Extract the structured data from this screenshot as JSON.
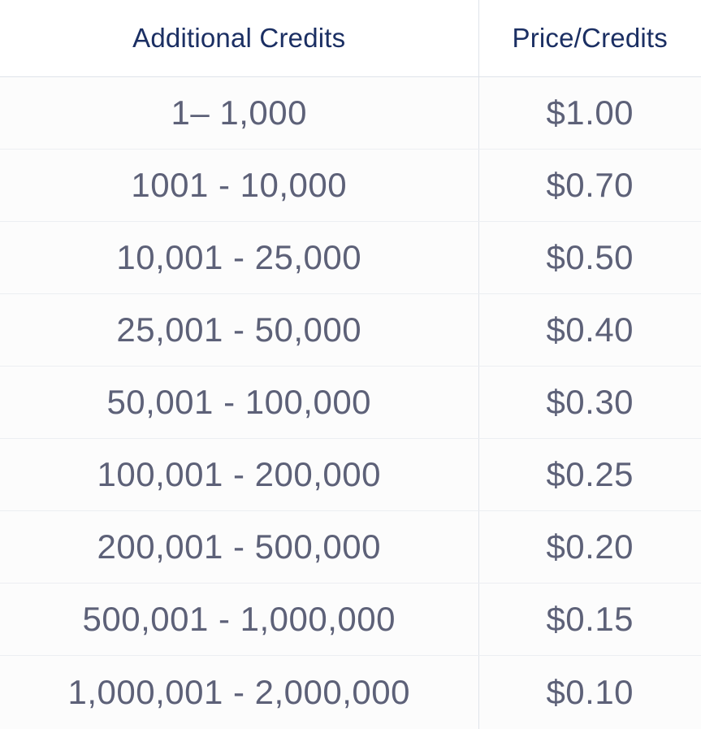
{
  "table": {
    "headers": {
      "credits": "Additional Credits",
      "price": "Price/Credits"
    },
    "rows": [
      {
        "credits": "1– 1,000",
        "price": "$1.00"
      },
      {
        "credits": "1001 - 10,000",
        "price": "$0.70"
      },
      {
        "credits": "10,001 - 25,000",
        "price": "$0.50"
      },
      {
        "credits": "25,001 - 50,000",
        "price": "$0.40"
      },
      {
        "credits": "50,001 - 100,000",
        "price": "$0.30"
      },
      {
        "credits": "100,001 - 200,000",
        "price": "$0.25"
      },
      {
        "credits": "200,001 - 500,000",
        "price": "$0.20"
      },
      {
        "credits": "500,001 - 1,000,000",
        "price": "$0.15"
      },
      {
        "credits": "1,000,001 - 2,000,000",
        "price": "$0.10"
      }
    ]
  }
}
